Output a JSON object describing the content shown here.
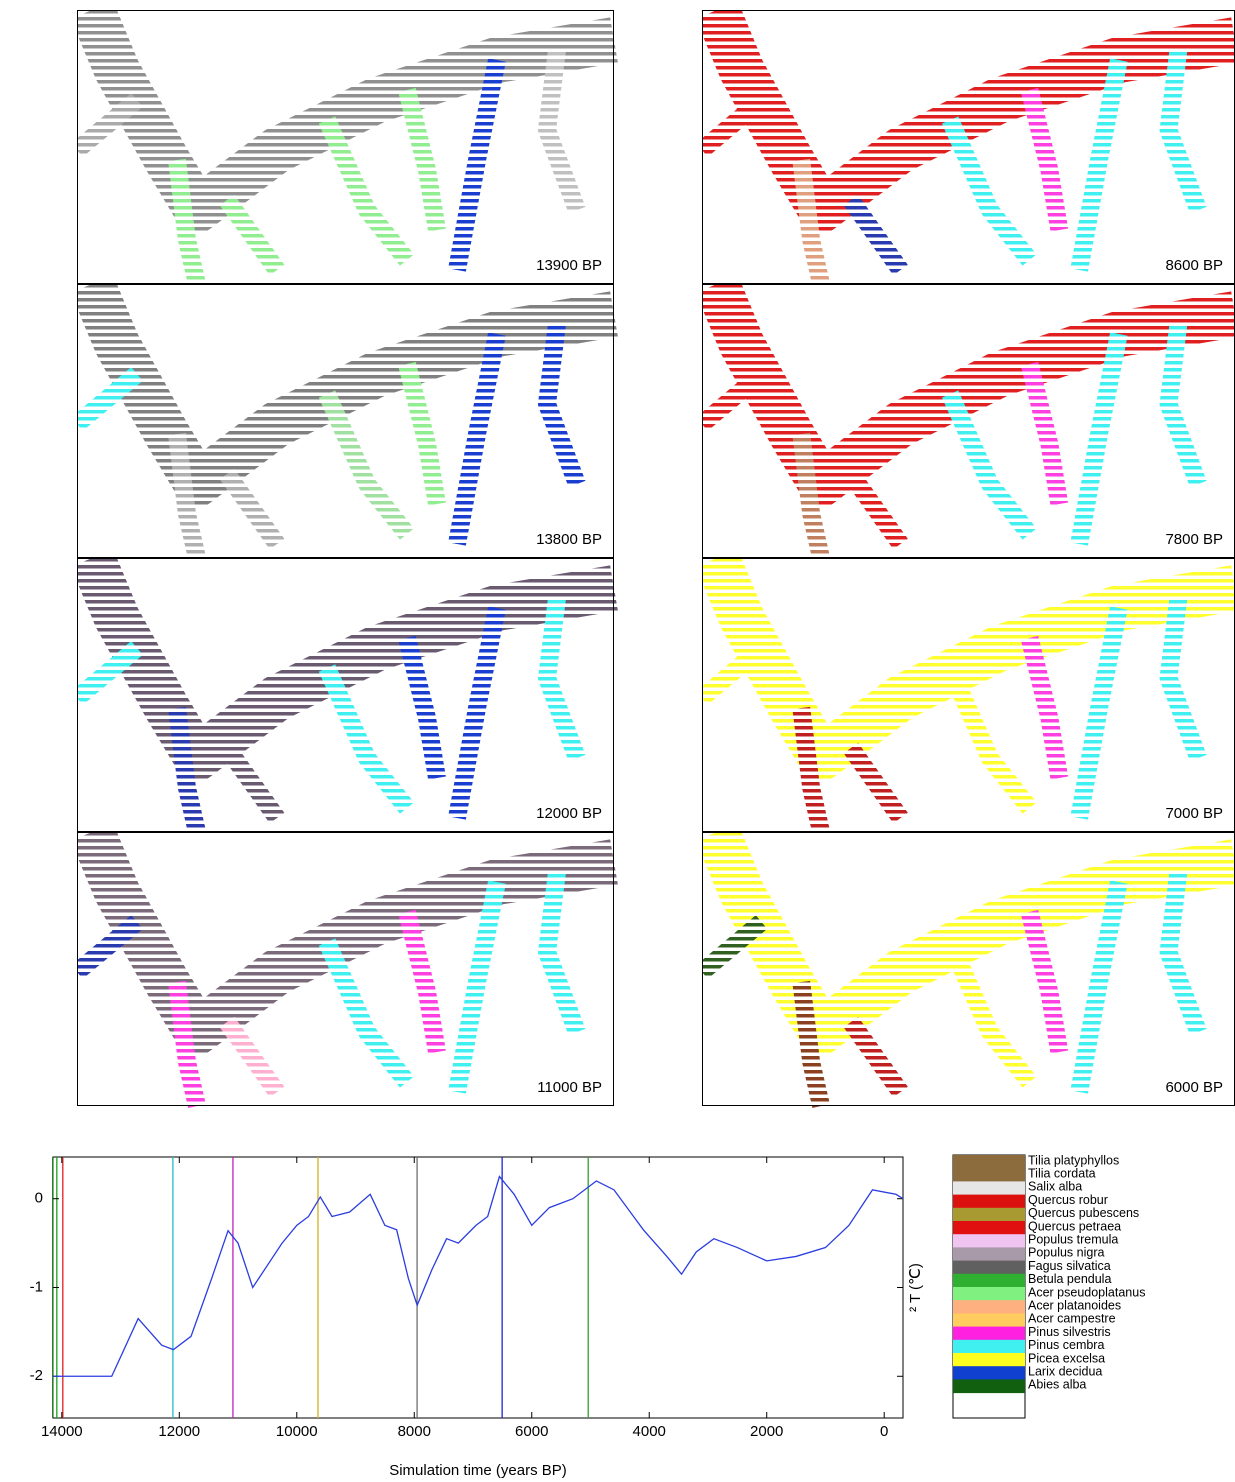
{
  "panels": [
    {
      "label": "13900 BP"
    },
    {
      "label": "13800 BP"
    },
    {
      "label": "12000 BP"
    },
    {
      "label": "11000 BP"
    },
    {
      "label": "8600 BP"
    },
    {
      "label": "7800 BP"
    },
    {
      "label": "7000 BP"
    },
    {
      "label": "6000 BP"
    }
  ],
  "chart_data": {
    "type": "line",
    "x_label": "Simulation time (years BP)",
    "y_label": "² T (℃)",
    "xlim": [
      14150,
      -320
    ],
    "ylim": [
      -2.47,
      0.47
    ],
    "xticks": [
      14000,
      12000,
      10000,
      8000,
      6000,
      4000,
      2000,
      0
    ],
    "yticks": [
      0,
      -1,
      -2
    ],
    "series": [
      {
        "color": "#2b3de0",
        "x": [
          14150,
          13150,
          12700,
          12300,
          12100,
          11800,
          11450,
          11170,
          11000,
          10750,
          10500,
          10250,
          10000,
          9800,
          9600,
          9400,
          9100,
          8750,
          8500,
          8300,
          8100,
          7950,
          7700,
          7450,
          7250,
          6950,
          6750,
          6550,
          6300,
          6000,
          5700,
          5300,
          4900,
          4600,
          4100,
          3700,
          3450,
          3200,
          2900,
          2500,
          2000,
          1500,
          1000,
          600,
          200,
          -200,
          -320
        ],
        "values": [
          -2,
          -2,
          -1.35,
          -1.65,
          -1.7,
          -1.55,
          -0.9,
          -0.36,
          -0.5,
          -1.0,
          -0.75,
          -0.5,
          -0.3,
          -0.2,
          0.02,
          -0.2,
          -0.15,
          0.05,
          -0.3,
          -0.35,
          -0.9,
          -1.2,
          -0.8,
          -0.45,
          -0.5,
          -0.3,
          -0.2,
          0.25,
          0.05,
          -0.3,
          -0.1,
          0.0,
          0.2,
          0.1,
          -0.35,
          -0.65,
          -0.85,
          -0.6,
          -0.45,
          -0.55,
          -0.7,
          -0.65,
          -0.55,
          -0.3,
          0.1,
          0.05,
          0.0
        ]
      }
    ],
    "markers": [
      {
        "x": 14153,
        "color": "#006400"
      },
      {
        "x": 14085,
        "color": "#20a020"
      },
      {
        "x": 13983,
        "color": "#e02020"
      },
      {
        "x": 12109,
        "color": "#20c0c0"
      },
      {
        "x": 11087,
        "color": "#c020c0"
      },
      {
        "x": 9639,
        "color": "#d0b020"
      },
      {
        "x": 7952,
        "color": "#707070"
      },
      {
        "x": 6504,
        "color": "#2020e0"
      },
      {
        "x": 5039,
        "color": "#30a030"
      }
    ],
    "legend": [
      {
        "name": "Tilia platyphyllos",
        "color": "#8c6b3c"
      },
      {
        "name": "Tilia cordata",
        "color": "#8c6b3c"
      },
      {
        "name": "Salix alba",
        "color": "#e6e6e6"
      },
      {
        "name": "Quercus robur",
        "color": "#dd1010"
      },
      {
        "name": "Quercus pubescens",
        "color": "#a89a30"
      },
      {
        "name": "Quercus petraea",
        "color": "#e01010"
      },
      {
        "name": "Populus tremula",
        "color": "#f0c4f0"
      },
      {
        "name": "Populus nigra",
        "color": "#a89aa8"
      },
      {
        "name": "Fagus silvatica",
        "color": "#606060"
      },
      {
        "name": "Betula pendula",
        "color": "#30b030"
      },
      {
        "name": "Acer pseudoplatanus",
        "color": "#80f080"
      },
      {
        "name": "Acer platanoides",
        "color": "#ffb080"
      },
      {
        "name": "Acer campestre",
        "color": "#ffcc60"
      },
      {
        "name": "Pinus silvestris",
        "color": "#ff20e0"
      },
      {
        "name": "Pinus cembra",
        "color": "#40f0f0"
      },
      {
        "name": "Picea excelsa",
        "color": "#ffff20"
      },
      {
        "name": "Larix decidua",
        "color": "#1040d0"
      },
      {
        "name": "Abies alba",
        "color": "#106010"
      }
    ]
  }
}
